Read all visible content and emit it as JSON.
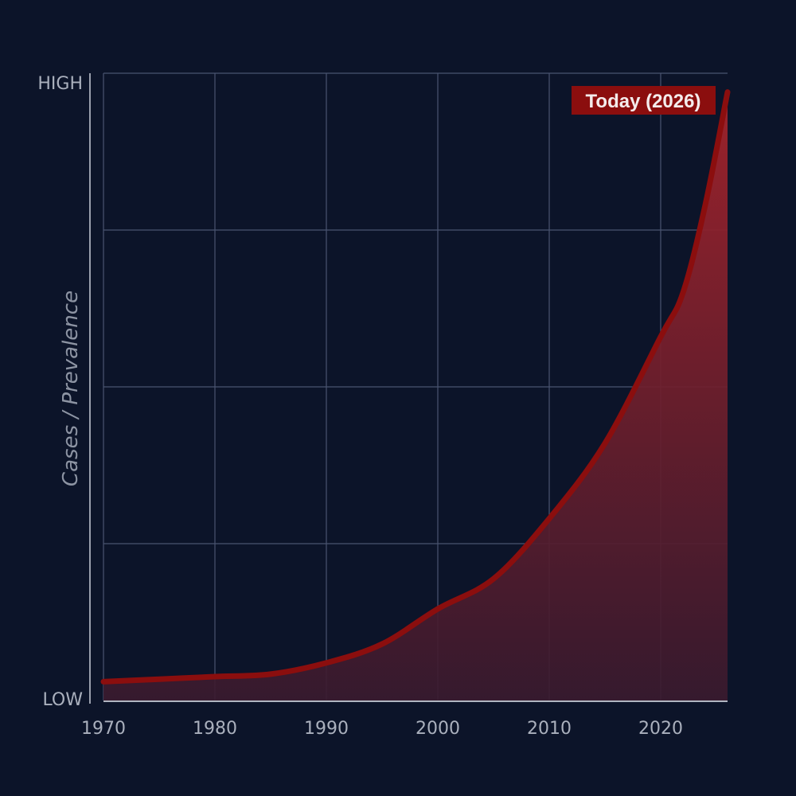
{
  "chart_data": {
    "type": "area",
    "title": "",
    "xlabel": "",
    "ylabel": "Cases / Prevalence",
    "xlim": [
      1970,
      2026
    ],
    "ylim": [
      0,
      1
    ],
    "x_ticks": [
      "1970",
      "1980",
      "1990",
      "2000",
      "2010",
      "2020"
    ],
    "y_ticks": [
      "LOW",
      "HIGH"
    ],
    "grid": true,
    "annotation": "Today (2026)",
    "colors": {
      "background": "#0c1429",
      "line": "#8b0e0e",
      "fill": "#a3232b",
      "grid": "#4a5470",
      "annotation_bg": "#8b0e0e"
    },
    "series": [
      {
        "x": [
          1970,
          1975,
          1980,
          1985,
          1990,
          1995,
          2000,
          2005,
          2010,
          2015,
          2020,
          2022,
          2024,
          2026
        ],
        "y": [
          0.03,
          0.034,
          0.038,
          0.042,
          0.06,
          0.09,
          0.146,
          0.194,
          0.29,
          0.41,
          0.58,
          0.65,
          0.79,
          0.97
        ]
      }
    ]
  }
}
